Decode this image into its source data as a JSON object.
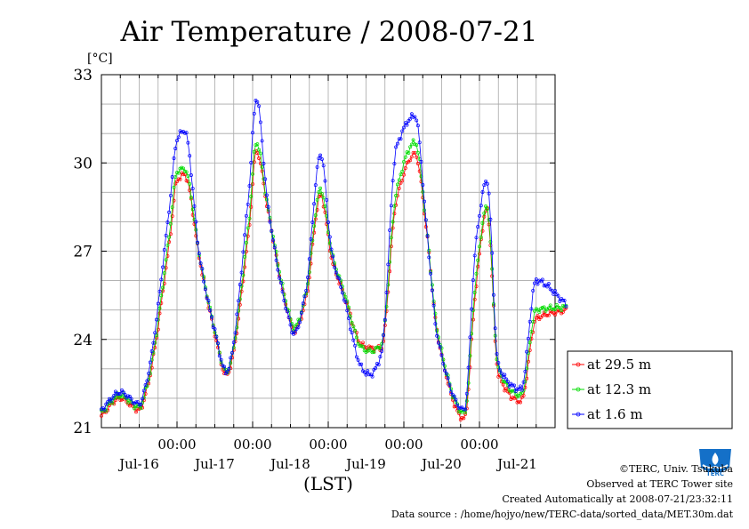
{
  "chart_data": {
    "type": "line",
    "title": "Air Temperature / 2008-07-21",
    "unit_label": "[°C]",
    "xlabel": "(LST)",
    "ylabel": "",
    "ylim": [
      21,
      33
    ],
    "xlim": [
      0,
      6.15
    ],
    "y_ticks": [
      "21",
      "24",
      "27",
      "30",
      "33"
    ],
    "x_time_ticks": [
      "00:00",
      "00:00",
      "00:00",
      "00:00",
      "00:00"
    ],
    "x_day_labels": [
      "Jul-16",
      "Jul-17",
      "Jul-18",
      "Jul-19",
      "Jul-20",
      "Jul-21"
    ],
    "grid": true,
    "legend_position": "right",
    "series": [
      {
        "name": "at 29.5 m",
        "color": "#ff0000",
        "x": [
          0,
          0.25,
          0.5,
          0.6,
          0.9,
          1.0,
          1.1,
          1.3,
          1.5,
          1.65,
          1.95,
          2.05,
          2.2,
          2.45,
          2.55,
          2.7,
          2.9,
          3.05,
          3.2,
          3.45,
          3.55,
          3.7,
          3.9,
          4.15,
          4.3,
          4.45,
          4.8,
          4.95,
          5.1,
          5.25,
          5.55,
          5.75,
          6.15
        ],
        "y": [
          21.4,
          22.0,
          21.6,
          22.3,
          27.3,
          29.4,
          29.6,
          26.7,
          24.2,
          22.8,
          27.7,
          30.4,
          28.4,
          25.1,
          24.3,
          25.3,
          28.9,
          26.7,
          25.6,
          23.8,
          23.7,
          23.7,
          28.7,
          30.3,
          27.7,
          24.1,
          21.3,
          25.7,
          28.4,
          22.8,
          21.9,
          24.7,
          25.0
        ]
      },
      {
        "name": "at 12.3 m",
        "color": "#00dd00",
        "x": [
          0,
          0.25,
          0.5,
          0.6,
          0.9,
          1.0,
          1.1,
          1.3,
          1.5,
          1.65,
          1.95,
          2.05,
          2.2,
          2.45,
          2.55,
          2.7,
          2.9,
          3.05,
          3.2,
          3.45,
          3.55,
          3.7,
          3.9,
          4.15,
          4.3,
          4.45,
          4.8,
          4.95,
          5.1,
          5.25,
          5.55,
          5.75,
          6.15
        ],
        "y": [
          21.5,
          22.1,
          21.7,
          22.4,
          27.6,
          29.7,
          29.8,
          26.8,
          24.3,
          22.9,
          28.0,
          30.7,
          28.5,
          25.2,
          24.4,
          25.5,
          29.1,
          26.9,
          25.7,
          23.7,
          23.6,
          23.8,
          29.0,
          30.7,
          27.8,
          24.2,
          21.5,
          26.0,
          28.5,
          23.0,
          22.1,
          25.0,
          25.1
        ]
      },
      {
        "name": "at 1.6 m",
        "color": "#0000ff",
        "x": [
          0,
          0.25,
          0.5,
          0.6,
          0.9,
          1.0,
          1.1,
          1.3,
          1.5,
          1.65,
          1.95,
          2.05,
          2.2,
          2.45,
          2.55,
          2.7,
          2.9,
          3.05,
          3.2,
          3.45,
          3.55,
          3.7,
          3.9,
          4.15,
          4.3,
          4.45,
          4.8,
          4.95,
          5.1,
          5.25,
          5.55,
          5.75,
          6.15
        ],
        "y": [
          21.6,
          22.2,
          21.8,
          22.6,
          28.5,
          30.8,
          31.1,
          26.8,
          24.3,
          22.9,
          29.0,
          32.2,
          28.6,
          25.0,
          24.2,
          25.6,
          30.3,
          26.9,
          25.5,
          23.0,
          22.8,
          23.5,
          30.5,
          31.6,
          27.8,
          24.0,
          21.6,
          27.2,
          29.4,
          23.1,
          22.3,
          26.0,
          25.2
        ]
      }
    ]
  },
  "credits": {
    "copyright": "©TERC, Univ. Tsukuba",
    "site": "Observed at TERC Tower site",
    "created": "Created Automatically at 2008-07-21/23:32:11",
    "source": "Data source : /home/hojyo/new/TERC-data/sorted_data/MET.30m.dat",
    "logo_text": "TERC"
  }
}
